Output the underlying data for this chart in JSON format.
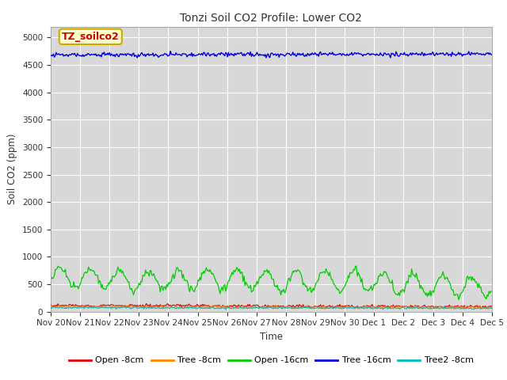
{
  "title": "Tonzi Soil CO2 Profile: Lower CO2",
  "ylabel": "Soil CO2 (ppm)",
  "xlabel": "Time",
  "plot_bg_color": "#d8d8d8",
  "fig_bg_color": "#ffffff",
  "ylim": [
    0,
    5200
  ],
  "yticks": [
    0,
    500,
    1000,
    1500,
    2000,
    2500,
    3000,
    3500,
    4000,
    4500,
    5000
  ],
  "annotation_text": "TZ_soilco2",
  "annotation_bg": "#ffffcc",
  "annotation_fg": "#cc0000",
  "annotation_border": "#ccaa00",
  "legend_labels": [
    "Open -8cm",
    "Tree -8cm",
    "Open -16cm",
    "Tree -16cm",
    "Tree2 -8cm"
  ],
  "legend_colors": [
    "#dd0000",
    "#ff8800",
    "#00cc00",
    "#0000dd",
    "#00bbbb"
  ],
  "num_points": 480,
  "x_start": 0,
  "x_end": 15,
  "xtick_positions": [
    0,
    1,
    2,
    3,
    4,
    5,
    6,
    7,
    8,
    9,
    10,
    11,
    12,
    13,
    14,
    15
  ],
  "xtick_labels": [
    "Nov 20",
    "Nov 21",
    "Nov 22",
    "Nov 23",
    "Nov 24",
    "Nov 25",
    "Nov 26",
    "Nov 27",
    "Nov 28",
    "Nov 29",
    "Nov 30",
    "Dec 1",
    "Dec 2",
    "Dec 3",
    "Dec 4",
    "Dec 5"
  ]
}
